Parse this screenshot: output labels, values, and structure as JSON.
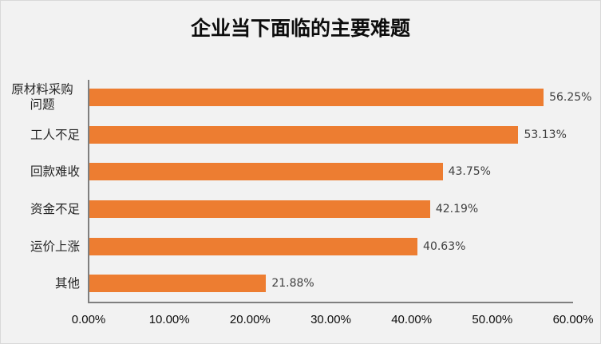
{
  "chart_data": {
    "type": "bar",
    "orientation": "horizontal",
    "title": "企业当下面临的主要难题",
    "xlabel": "",
    "ylabel": "",
    "categories": [
      "原材料采购问题",
      "工人不足",
      "回款难收",
      "资金不足",
      "运价上涨",
      "其他"
    ],
    "category_display": [
      [
        "原材料采购",
        "问题"
      ],
      [
        "工人不足"
      ],
      [
        "回款难收"
      ],
      [
        "资金不足"
      ],
      [
        "运价上涨"
      ],
      [
        "其他"
      ]
    ],
    "values": [
      56.25,
      53.13,
      43.75,
      42.19,
      40.63,
      21.88
    ],
    "value_labels": [
      "56.25%",
      "53.13%",
      "43.75%",
      "42.19%",
      "40.63%",
      "21.88%"
    ],
    "xlim": [
      0,
      60
    ],
    "x_ticks": [
      "0.00%",
      "10.00%",
      "20.00%",
      "30.00%",
      "40.00%",
      "50.00%",
      "60.00%"
    ],
    "grid": false,
    "legend": "none",
    "bar_color": "#ed7d31",
    "background_color": "#f2f2f2"
  }
}
